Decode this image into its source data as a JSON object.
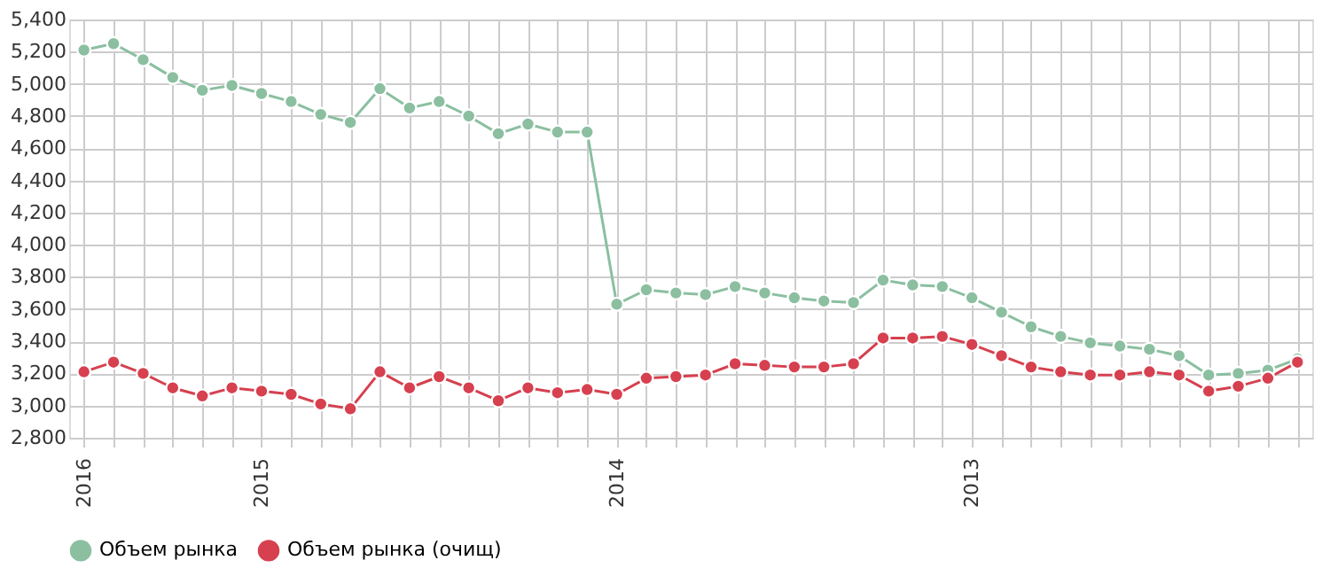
{
  "chart_data": {
    "type": "line",
    "categories": [
      "2016",
      null,
      null,
      null,
      null,
      null,
      "2015",
      null,
      null,
      null,
      null,
      null,
      null,
      null,
      null,
      null,
      null,
      null,
      "2014",
      null,
      null,
      null,
      null,
      null,
      null,
      null,
      null,
      null,
      null,
      null,
      "2013",
      null,
      null,
      null,
      null,
      null,
      null,
      null,
      null,
      null,
      null,
      null
    ],
    "series": [
      {
        "name": "Объем рынка",
        "color": "#8bbfa0",
        "values": [
          5210,
          5250,
          5150,
          5040,
          4960,
          4990,
          4940,
          4890,
          4810,
          4760,
          4970,
          4850,
          4890,
          4800,
          4690,
          4750,
          4700,
          4700,
          3630,
          3720,
          3700,
          3690,
          3740,
          3700,
          3670,
          3650,
          3640,
          3780,
          3750,
          3740,
          3670,
          3580,
          3490,
          3430,
          3390,
          3370,
          3350,
          3310,
          3190,
          3200,
          3220,
          3290
        ]
      },
      {
        "name": "Объем рынка (очищ)",
        "color": "#d6404f",
        "values": [
          3210,
          3270,
          3200,
          3110,
          3060,
          3110,
          3090,
          3070,
          3010,
          2980,
          3210,
          3110,
          3180,
          3110,
          3030,
          3110,
          3080,
          3100,
          3070,
          3170,
          3180,
          3190,
          3260,
          3250,
          3240,
          3240,
          3260,
          3420,
          3420,
          3430,
          3380,
          3310,
          3240,
          3210,
          3190,
          3190,
          3210,
          3190,
          3090,
          3120,
          3170,
          3270
        ]
      }
    ],
    "ylim": [
      2800,
      5400
    ],
    "yticks": [
      {
        "value": 2800,
        "label": "2,800"
      },
      {
        "value": 3000,
        "label": "3,000"
      },
      {
        "value": 3200,
        "label": "3,200"
      },
      {
        "value": 3400,
        "label": "3,400"
      },
      {
        "value": 3600,
        "label": "3,600"
      },
      {
        "value": 3800,
        "label": "3,800"
      },
      {
        "value": 4000,
        "label": "4,000"
      },
      {
        "value": 4200,
        "label": "4,200"
      },
      {
        "value": 4400,
        "label": "4,400"
      },
      {
        "value": 4600,
        "label": "4,600"
      },
      {
        "value": 4800,
        "label": "4,800"
      },
      {
        "value": 5000,
        "label": "5,000"
      },
      {
        "value": 5200,
        "label": "5,200"
      },
      {
        "value": 5400,
        "label": "5,400"
      }
    ],
    "grid": true,
    "legend": "bottom",
    "marker": "circle",
    "line_style": "solid"
  }
}
